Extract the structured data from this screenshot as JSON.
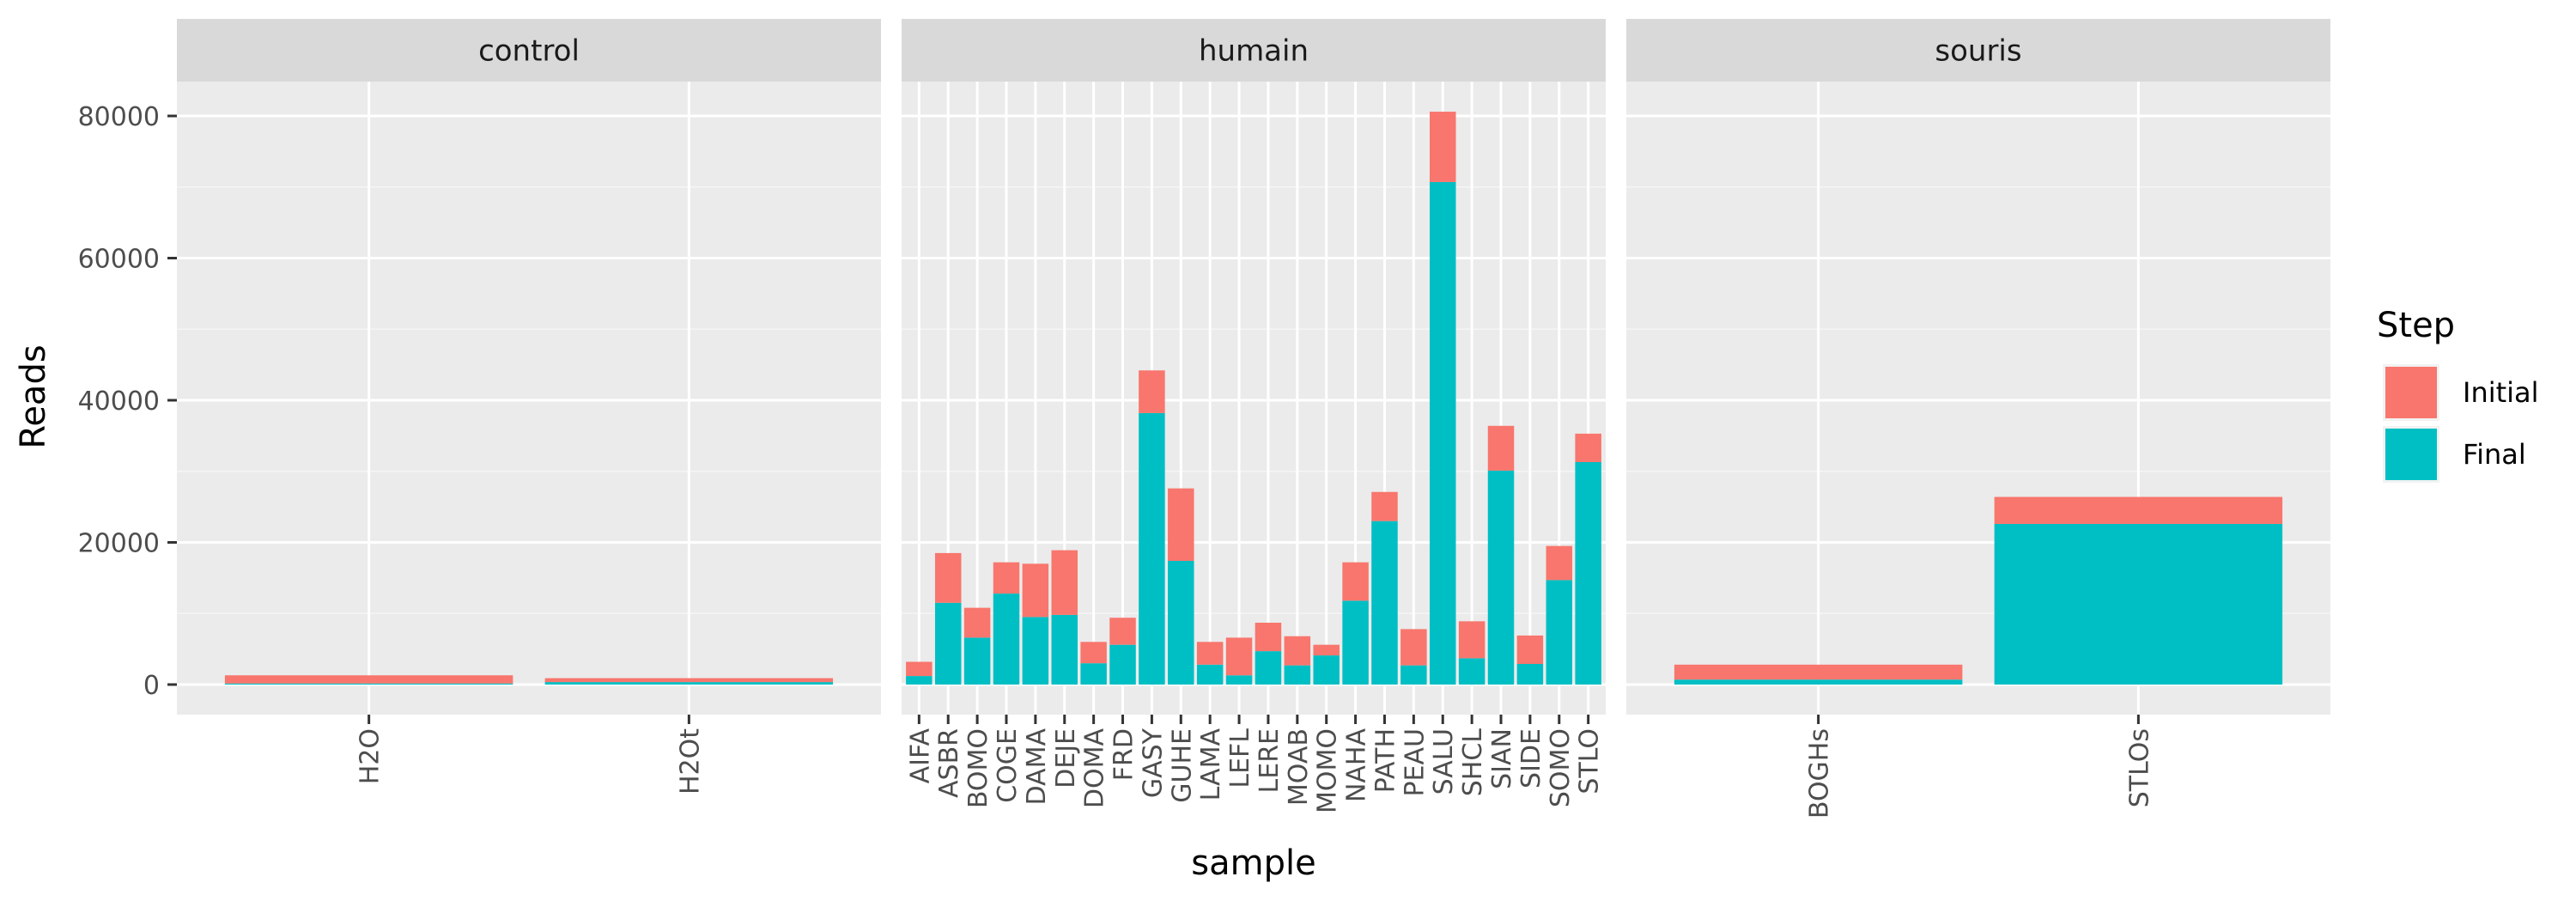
{
  "chart_data": {
    "type": "bar",
    "stacked": true,
    "facet_by": "group",
    "xlabel": "sample",
    "ylabel": "Reads",
    "ylim": [
      0,
      85000
    ],
    "y_ticks": [
      0,
      20000,
      40000,
      60000,
      80000
    ],
    "grid": true,
    "legend": {
      "title": "Step",
      "position": "right",
      "entries": [
        {
          "name": "Initial",
          "color": "#F8766D"
        },
        {
          "name": "Final",
          "color": "#00BFC4"
        }
      ]
    },
    "series": [
      {
        "name": "Final",
        "color": "#00BFC4"
      },
      {
        "name": "Initial",
        "color": "#F8766D"
      }
    ],
    "facets": [
      {
        "name": "control",
        "categories": [
          "H2O",
          "H2Ot"
        ],
        "final": [
          150,
          350
        ],
        "initial": [
          1300,
          900
        ]
      },
      {
        "name": "humain",
        "categories": [
          "AIFA",
          "ASBR",
          "BOMO",
          "COGE",
          "DAMA",
          "DEJE",
          "DOMA",
          "FRD",
          "GASY",
          "GUHE",
          "LAMA",
          "LEFL",
          "LERE",
          "MOAB",
          "MOMO",
          "NAHA",
          "PATH",
          "PEAU",
          "SALU",
          "SHCL",
          "SIAN",
          "SIDE",
          "SOMO",
          "STLO"
        ],
        "final": [
          1200,
          11500,
          6600,
          12800,
          9500,
          9800,
          3000,
          5600,
          38200,
          17400,
          2800,
          1300,
          4700,
          2700,
          4100,
          11800,
          23000,
          2700,
          70700,
          3700,
          30100,
          2900,
          14700,
          31300
        ],
        "initial": [
          3200,
          18500,
          10800,
          17200,
          17000,
          18900,
          6000,
          9400,
          44200,
          27600,
          6000,
          6600,
          8700,
          6800,
          5600,
          17200,
          27100,
          7800,
          80600,
          8900,
          36400,
          6900,
          19500,
          35300
        ]
      },
      {
        "name": "souris",
        "categories": [
          "BOGHs",
          "STLOs"
        ],
        "final": [
          700,
          22600
        ],
        "initial": [
          2800,
          26400
        ]
      }
    ]
  }
}
